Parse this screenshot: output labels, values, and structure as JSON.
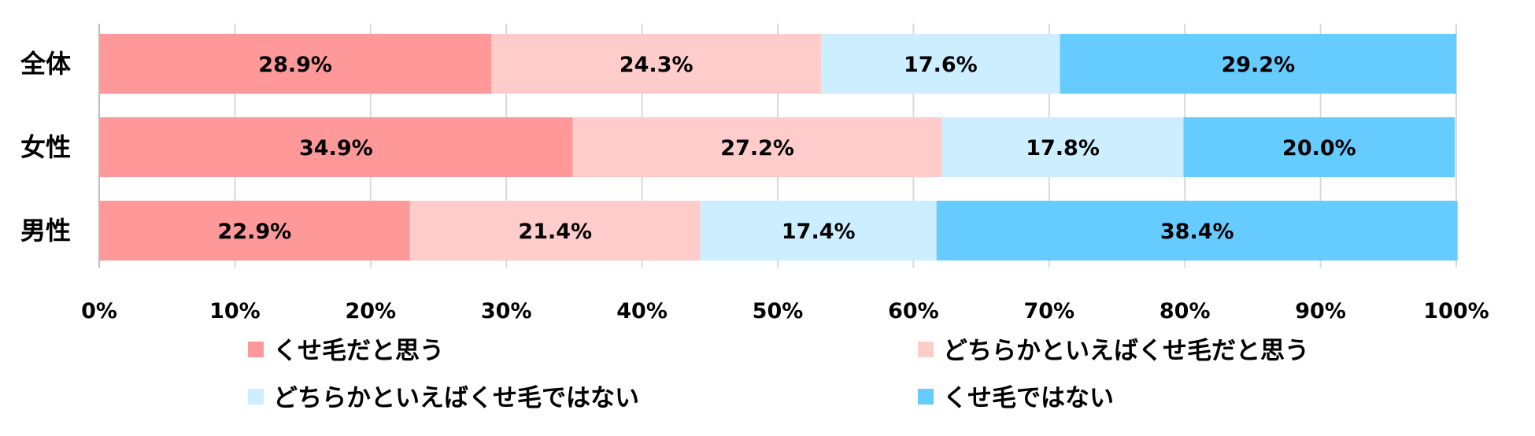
{
  "chart_data": {
    "type": "bar",
    "orientation": "horizontal",
    "stacked": true,
    "categories": [
      "全体",
      "女性",
      "男性"
    ],
    "series": [
      {
        "name": "くせ毛だと思う",
        "values": [
          28.9,
          34.9,
          22.9
        ],
        "color": "#ff9999"
      },
      {
        "name": "どちらかといえばくせ毛だと思う",
        "values": [
          24.3,
          27.2,
          21.4
        ],
        "color": "#ffcccc"
      },
      {
        "name": "どちらかといえばくせ毛ではない",
        "values": [
          17.6,
          17.8,
          17.4
        ],
        "color": "#cceeff"
      },
      {
        "name": "くせ毛ではない",
        "values": [
          29.2,
          20.0,
          38.4
        ],
        "color": "#66ccff"
      }
    ],
    "value_labels": [
      [
        "28.9%",
        "24.3%",
        "17.6%",
        "29.2%"
      ],
      [
        "34.9%",
        "27.2%",
        "17.8%",
        "20.0%"
      ],
      [
        "22.9%",
        "21.4%",
        "17.4%",
        "38.4%"
      ]
    ],
    "xticks": [
      "0%",
      "10%",
      "20%",
      "30%",
      "40%",
      "50%",
      "60%",
      "70%",
      "80%",
      "90%",
      "100%"
    ],
    "xlim": [
      0,
      100
    ],
    "grid": true,
    "legend_position": "bottom"
  }
}
